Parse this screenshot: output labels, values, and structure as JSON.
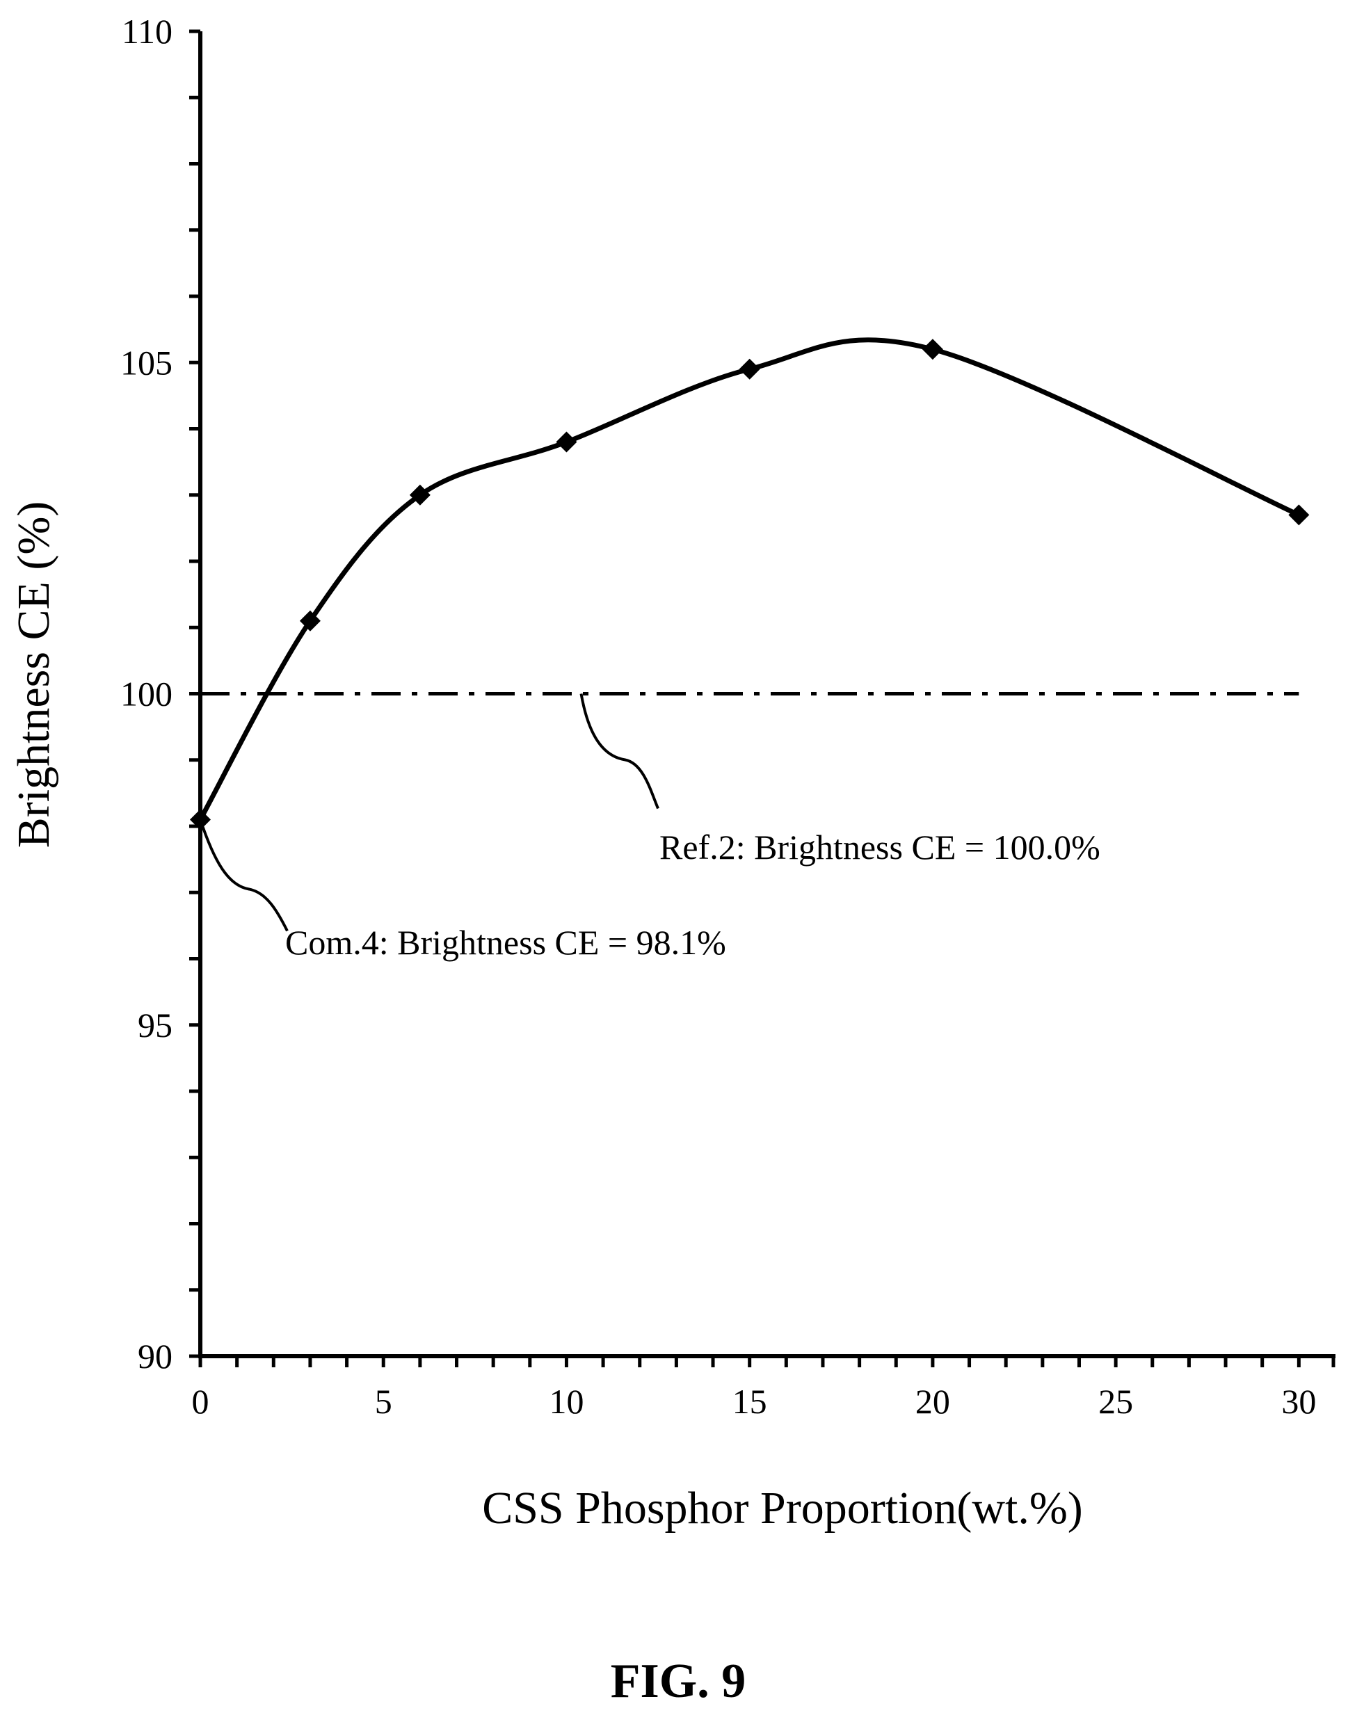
{
  "chart_data": {
    "type": "line",
    "title": "",
    "caption": "FIG. 9",
    "xlabel": "CSS Phosphor Proportion(wt.%)",
    "ylabel": "Brightness CE (%)",
    "xlim": [
      0,
      31
    ],
    "ylim": [
      90,
      110
    ],
    "xticks": [
      0,
      5,
      10,
      15,
      20,
      25,
      30
    ],
    "yticks": [
      90,
      95,
      100,
      105,
      110
    ],
    "y_minor_step": 1,
    "x_minor_step": 1,
    "grid": false,
    "legend": "none",
    "series": [
      {
        "x": [
          0,
          3,
          6,
          10,
          15,
          20,
          30
        ],
        "y": [
          98.1,
          101.1,
          103.0,
          103.8,
          104.9,
          105.2,
          102.7
        ],
        "line": "smooth",
        "marker": "diamond",
        "color": "#000000"
      }
    ],
    "reference_lines": [
      {
        "y": 100.0,
        "style": "dash-dot",
        "color": "#000000"
      }
    ],
    "annotations": [
      {
        "text": "Ref.2: Brightness CE = 100.0%"
      },
      {
        "text": "Com.4: Brightness CE = 98.1%"
      }
    ]
  }
}
